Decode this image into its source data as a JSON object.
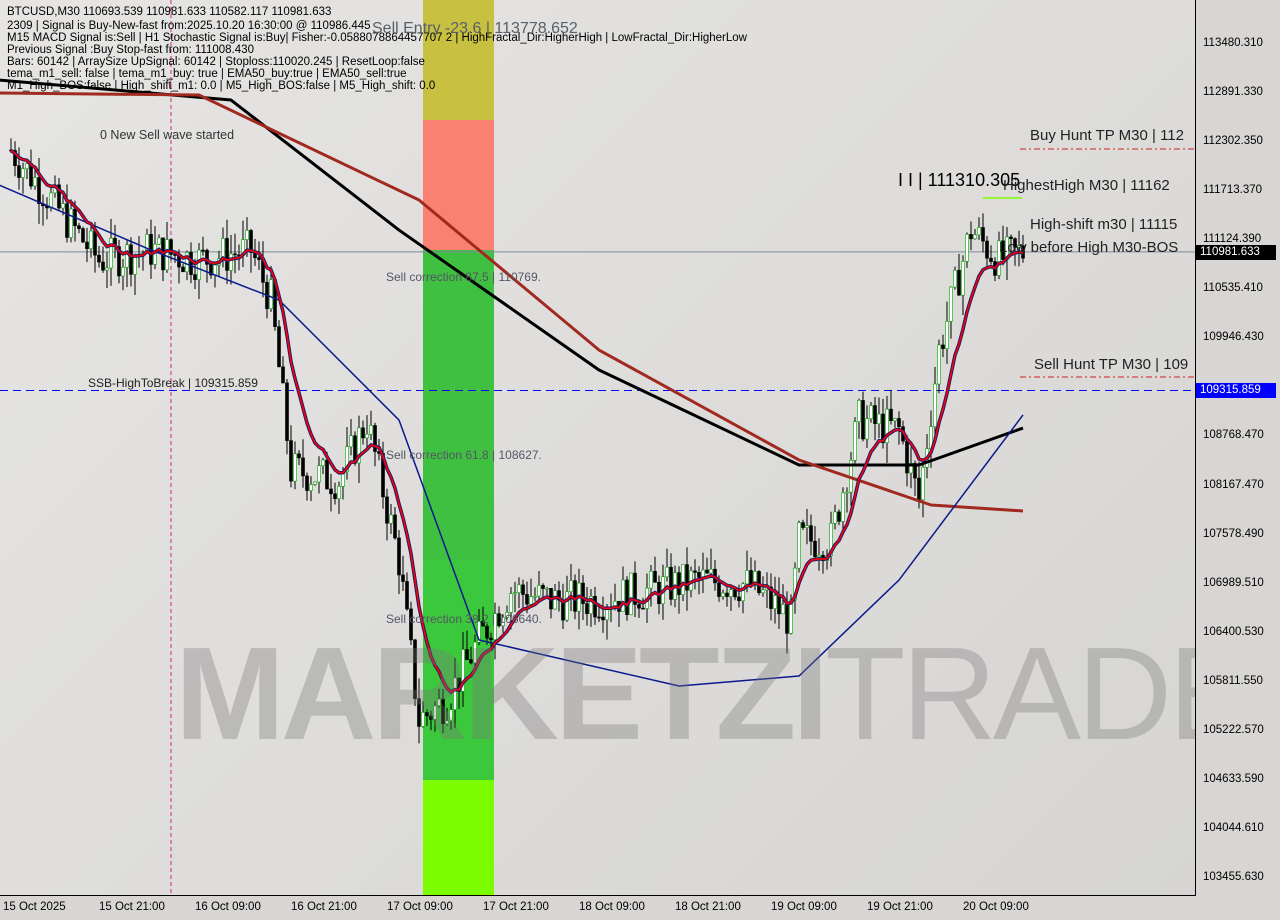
{
  "header": {
    "symbol_line": "BTCUSD,M30  110693.539 110981.633 110582.117 110981.633",
    "lines": [
      "2309 | Signal is Buy-New-fast from:2025.10.20 16:30:00 @ 110986.445",
      "M15 MACD Signal is:Sell | H1 Stochastic Signal is:Buy| Fisher:-0.0588078864457707 2 | HighFractal_Dir:HigherHigh | LowFractal_Dir:HigherLow",
      "Previous Signal :Buy Stop-fast from: 111008.430",
      "Bars: 60142 | ArraySize UpSignal: 60142 | Stoploss:110020.245 | ResetLoop:false",
      "tema_m1_sell: false | tema_m1_buy: true | EMA50_buy:true | EMA50_sell:true",
      "M1_High_BOS:false | High_shift_m1: 0.0 | M5_High_BOS:false | M5_High_shift: 0.0"
    ]
  },
  "annotations": {
    "sell_entry": "Sell Entry -23.6 | 113778.652",
    "new_sell_wave": "0 New Sell wave started",
    "ssb": "SSB-HighToBreak | 109315.859",
    "sell_corr_875": "Sell correction 87.5 | 110769.",
    "sell_corr_618": "Sell correction 61.8 | 108627.",
    "sell_corr_382": "Sell correction 38.2 | 106640.",
    "highest_value": "I I | 111310.305",
    "buy_hunt": "Buy Hunt TP M30 | 112",
    "highest_high": "HighestHigh   M30 | 11162",
    "high_shift": "High-shift m30 | 11115",
    "low_before_high": "Low before High   M30-BOS",
    "sell_hunt": "Sell Hunt TP M30 | 109"
  },
  "watermark": {
    "bold": "MARKETZI",
    "light": "TRADE"
  },
  "price_tags": {
    "current": "110981.633",
    "ssb_level": "109315.859"
  },
  "colors": {
    "bull": "#00a000",
    "bear": "#000000",
    "ma200": "#000000",
    "ma_slow": "#a02a20",
    "ma_blue": "#0a1a8c",
    "ema_fast": "#ff0000",
    "level_blue": "#0000ff",
    "current_tag": "#000000",
    "ssb_tag": "#0000ff"
  },
  "chart_data": {
    "type": "candlestick",
    "symbol": "BTCUSD",
    "timeframe": "M30",
    "ylim": [
      103200,
      114000
    ],
    "y_ticks": [
      "113480.310",
      "112891.330",
      "112302.350",
      "111713.370",
      "111124.390",
      "110535.410",
      "109946.430",
      "108768.470",
      "108167.470",
      "107578.490",
      "106989.510",
      "106400.530",
      "105811.550",
      "105222.570",
      "104633.590",
      "104044.610",
      "103455.630"
    ],
    "x_ticks": [
      "15 Oct 2025",
      "15 Oct 21:00",
      "16 Oct 09:00",
      "16 Oct 21:00",
      "17 Oct 09:00",
      "17 Oct 21:00",
      "18 Oct 09:00",
      "18 Oct 21:00",
      "19 Oct 09:00",
      "19 Oct 21:00",
      "20 Oct 09:00"
    ],
    "price_path": [
      [
        "10-15 10:00",
        112206
      ],
      [
        "10-15 15:00",
        111605
      ],
      [
        "10-15 21:00",
        110884
      ],
      [
        "10-16 03:30",
        111004
      ],
      [
        "10-16 09:30",
        110884
      ],
      [
        "10-16 16:00",
        111004
      ],
      [
        "10-16 18:30",
        110403
      ],
      [
        "10-16 21:00",
        108360
      ],
      [
        "10-17 03:00",
        108240
      ],
      [
        "10-17 06:30",
        108960
      ],
      [
        "10-17 10:30",
        107277
      ],
      [
        "10-17 13:00",
        105354
      ],
      [
        "10-17 16:30",
        105594
      ],
      [
        "10-17 20:30",
        106316
      ],
      [
        "10-18 00:30",
        106917
      ],
      [
        "10-18 05:30",
        106797
      ],
      [
        "10-18 11:30",
        106797
      ],
      [
        "10-18 18:00",
        106917
      ],
      [
        "10-19 00:00",
        107037
      ],
      [
        "10-19 06:30",
        106977
      ],
      [
        "10-19 11:30",
        106556
      ],
      [
        "10-19 12:30",
        107518
      ],
      [
        "10-19 16:30",
        107518
      ],
      [
        "10-19 20:00",
        108960
      ],
      [
        "10-20 01:00",
        108840
      ],
      [
        "10-20 03:30",
        107999
      ],
      [
        "10-20 06:00",
        109802
      ],
      [
        "10-20 10:00",
        111244
      ],
      [
        "10-20 13:30",
        110884
      ],
      [
        "10-20 16:30",
        110981
      ]
    ],
    "ma_lines": [
      {
        "id": "ma-black",
        "points": [
          [
            "10-15 08:30",
            113047
          ],
          [
            "10-16 13:30",
            112807
          ],
          [
            "10-17 10:30",
            111244
          ],
          [
            "10-18 11:30",
            109562
          ],
          [
            "10-19 12:30",
            108420
          ],
          [
            "10-20 03:30",
            108420
          ],
          [
            "10-20 16:30",
            108864
          ]
        ]
      },
      {
        "id": "ma-brown",
        "points": [
          [
            "10-15 08:30",
            112891
          ],
          [
            "10-16 09:30",
            112867
          ],
          [
            "10-17 13:00",
            111605
          ],
          [
            "10-18 11:30",
            109802
          ],
          [
            "10-19 12:30",
            108480
          ],
          [
            "10-20 05:00",
            107939
          ],
          [
            "10-20 16:30",
            107867
          ]
        ]
      },
      {
        "id": "ma-blue",
        "points": [
          [
            "10-15 08:30",
            111785
          ],
          [
            "10-16 03:30",
            111004
          ],
          [
            "10-16 19:30",
            110403
          ],
          [
            "10-17 10:30",
            108960
          ],
          [
            "10-17 20:30",
            106316
          ],
          [
            "10-18 21:30",
            105763
          ],
          [
            "10-19 12:30",
            105883
          ],
          [
            "10-20 01:00",
            107037
          ],
          [
            "10-20 16:30",
            109021
          ]
        ]
      }
    ],
    "levels": [
      {
        "id": "ssb-level",
        "price": 109315.859,
        "style": "dashed",
        "color": "#0000ff"
      },
      {
        "id": "current-price",
        "price": 110981.633,
        "style": "solid",
        "color": "#7d8a99"
      }
    ]
  }
}
